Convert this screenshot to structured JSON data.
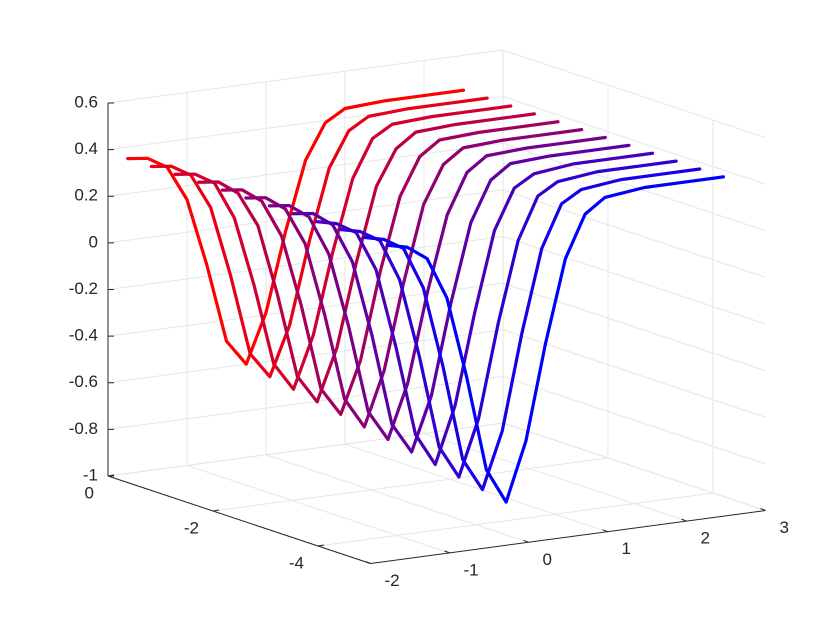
{
  "chart_data": {
    "type": "line3d",
    "grid": true,
    "xlim": [
      -2,
      3
    ],
    "ylim": [
      -5,
      0
    ],
    "zlim": [
      -1,
      0.6
    ],
    "xticks": [
      -2,
      -1,
      0,
      1,
      2,
      3
    ],
    "yticks": [
      -4,
      -2,
      0
    ],
    "zticks": [
      -1,
      -0.8,
      -0.6,
      -0.4,
      -0.2,
      0,
      0.2,
      0.4,
      0.6
    ],
    "x": [
      -1.75,
      -1.5,
      -1.25,
      -1,
      -0.75,
      -0.5,
      -0.25,
      0,
      0.25,
      0.5,
      0.75,
      1,
      1.5,
      2,
      2.5
    ],
    "series": [
      {
        "y": 0,
        "color": "#ff0000",
        "values": [
          0.35,
          0.34,
          0.29,
          0.14,
          -0.15,
          -0.49,
          -0.6,
          -0.39,
          -0.05,
          0.24,
          0.39,
          0.44,
          0.45,
          0.45,
          0.45
        ]
      },
      {
        "y": -0.45,
        "color": "#e80017",
        "values": [
          0.35,
          0.34,
          0.29,
          0.14,
          -0.16,
          -0.51,
          -0.62,
          -0.41,
          -0.06,
          0.24,
          0.39,
          0.44,
          0.45,
          0.45,
          0.45
        ]
      },
      {
        "y": -0.9,
        "color": "#d1002e",
        "values": [
          0.35,
          0.34,
          0.29,
          0.13,
          -0.17,
          -0.52,
          -0.64,
          -0.42,
          -0.07,
          0.23,
          0.39,
          0.44,
          0.45,
          0.45,
          0.45
        ]
      },
      {
        "y": -1.35,
        "color": "#ba0045",
        "values": [
          0.35,
          0.34,
          0.28,
          0.13,
          -0.18,
          -0.54,
          -0.66,
          -0.44,
          -0.08,
          0.23,
          0.38,
          0.44,
          0.45,
          0.45,
          0.45
        ]
      },
      {
        "y": -1.8,
        "color": "#a2005d",
        "values": [
          0.35,
          0.34,
          0.28,
          0.12,
          -0.19,
          -0.56,
          -0.68,
          -0.46,
          -0.09,
          0.22,
          0.38,
          0.44,
          0.45,
          0.45,
          0.45
        ]
      },
      {
        "y": -2.25,
        "color": "#8b0074",
        "values": [
          0.35,
          0.34,
          0.28,
          0.12,
          -0.2,
          -0.57,
          -0.7,
          -0.47,
          -0.1,
          0.22,
          0.38,
          0.44,
          0.45,
          0.45,
          0.45
        ]
      },
      {
        "y": -2.7,
        "color": "#74008b",
        "values": [
          0.35,
          0.34,
          0.28,
          0.11,
          -0.21,
          -0.59,
          -0.72,
          -0.49,
          -0.11,
          0.21,
          0.38,
          0.44,
          0.45,
          0.45,
          0.45
        ]
      },
      {
        "y": -3.15,
        "color": "#5d00a2",
        "values": [
          0.35,
          0.34,
          0.28,
          0.11,
          -0.22,
          -0.61,
          -0.74,
          -0.51,
          -0.12,
          0.21,
          0.38,
          0.44,
          0.45,
          0.45,
          0.45
        ]
      },
      {
        "y": -3.6,
        "color": "#4500ba",
        "values": [
          0.35,
          0.33,
          0.28,
          0.11,
          -0.23,
          -0.62,
          -0.76,
          -0.52,
          -0.13,
          0.21,
          0.38,
          0.43,
          0.45,
          0.45,
          0.45
        ]
      },
      {
        "y": -4.05,
        "color": "#2e00d1",
        "values": [
          0.35,
          0.33,
          0.28,
          0.1,
          -0.24,
          -0.64,
          -0.78,
          -0.54,
          -0.14,
          0.2,
          0.38,
          0.43,
          0.45,
          0.45,
          0.45
        ]
      },
      {
        "y": -4.5,
        "color": "#1700e8",
        "values": [
          0.35,
          0.33,
          0.28,
          0.1,
          -0.25,
          -0.66,
          -0.8,
          -0.56,
          -0.15,
          0.2,
          0.38,
          0.43,
          0.45,
          0.45,
          0.45
        ]
      },
      {
        "y": -4.95,
        "color": "#0000ff",
        "values": [
          0.35,
          0.33,
          0.27,
          0.09,
          -0.26,
          -0.67,
          -0.82,
          -0.57,
          -0.16,
          0.19,
          0.37,
          0.43,
          0.45,
          0.45,
          0.45
        ]
      }
    ]
  }
}
